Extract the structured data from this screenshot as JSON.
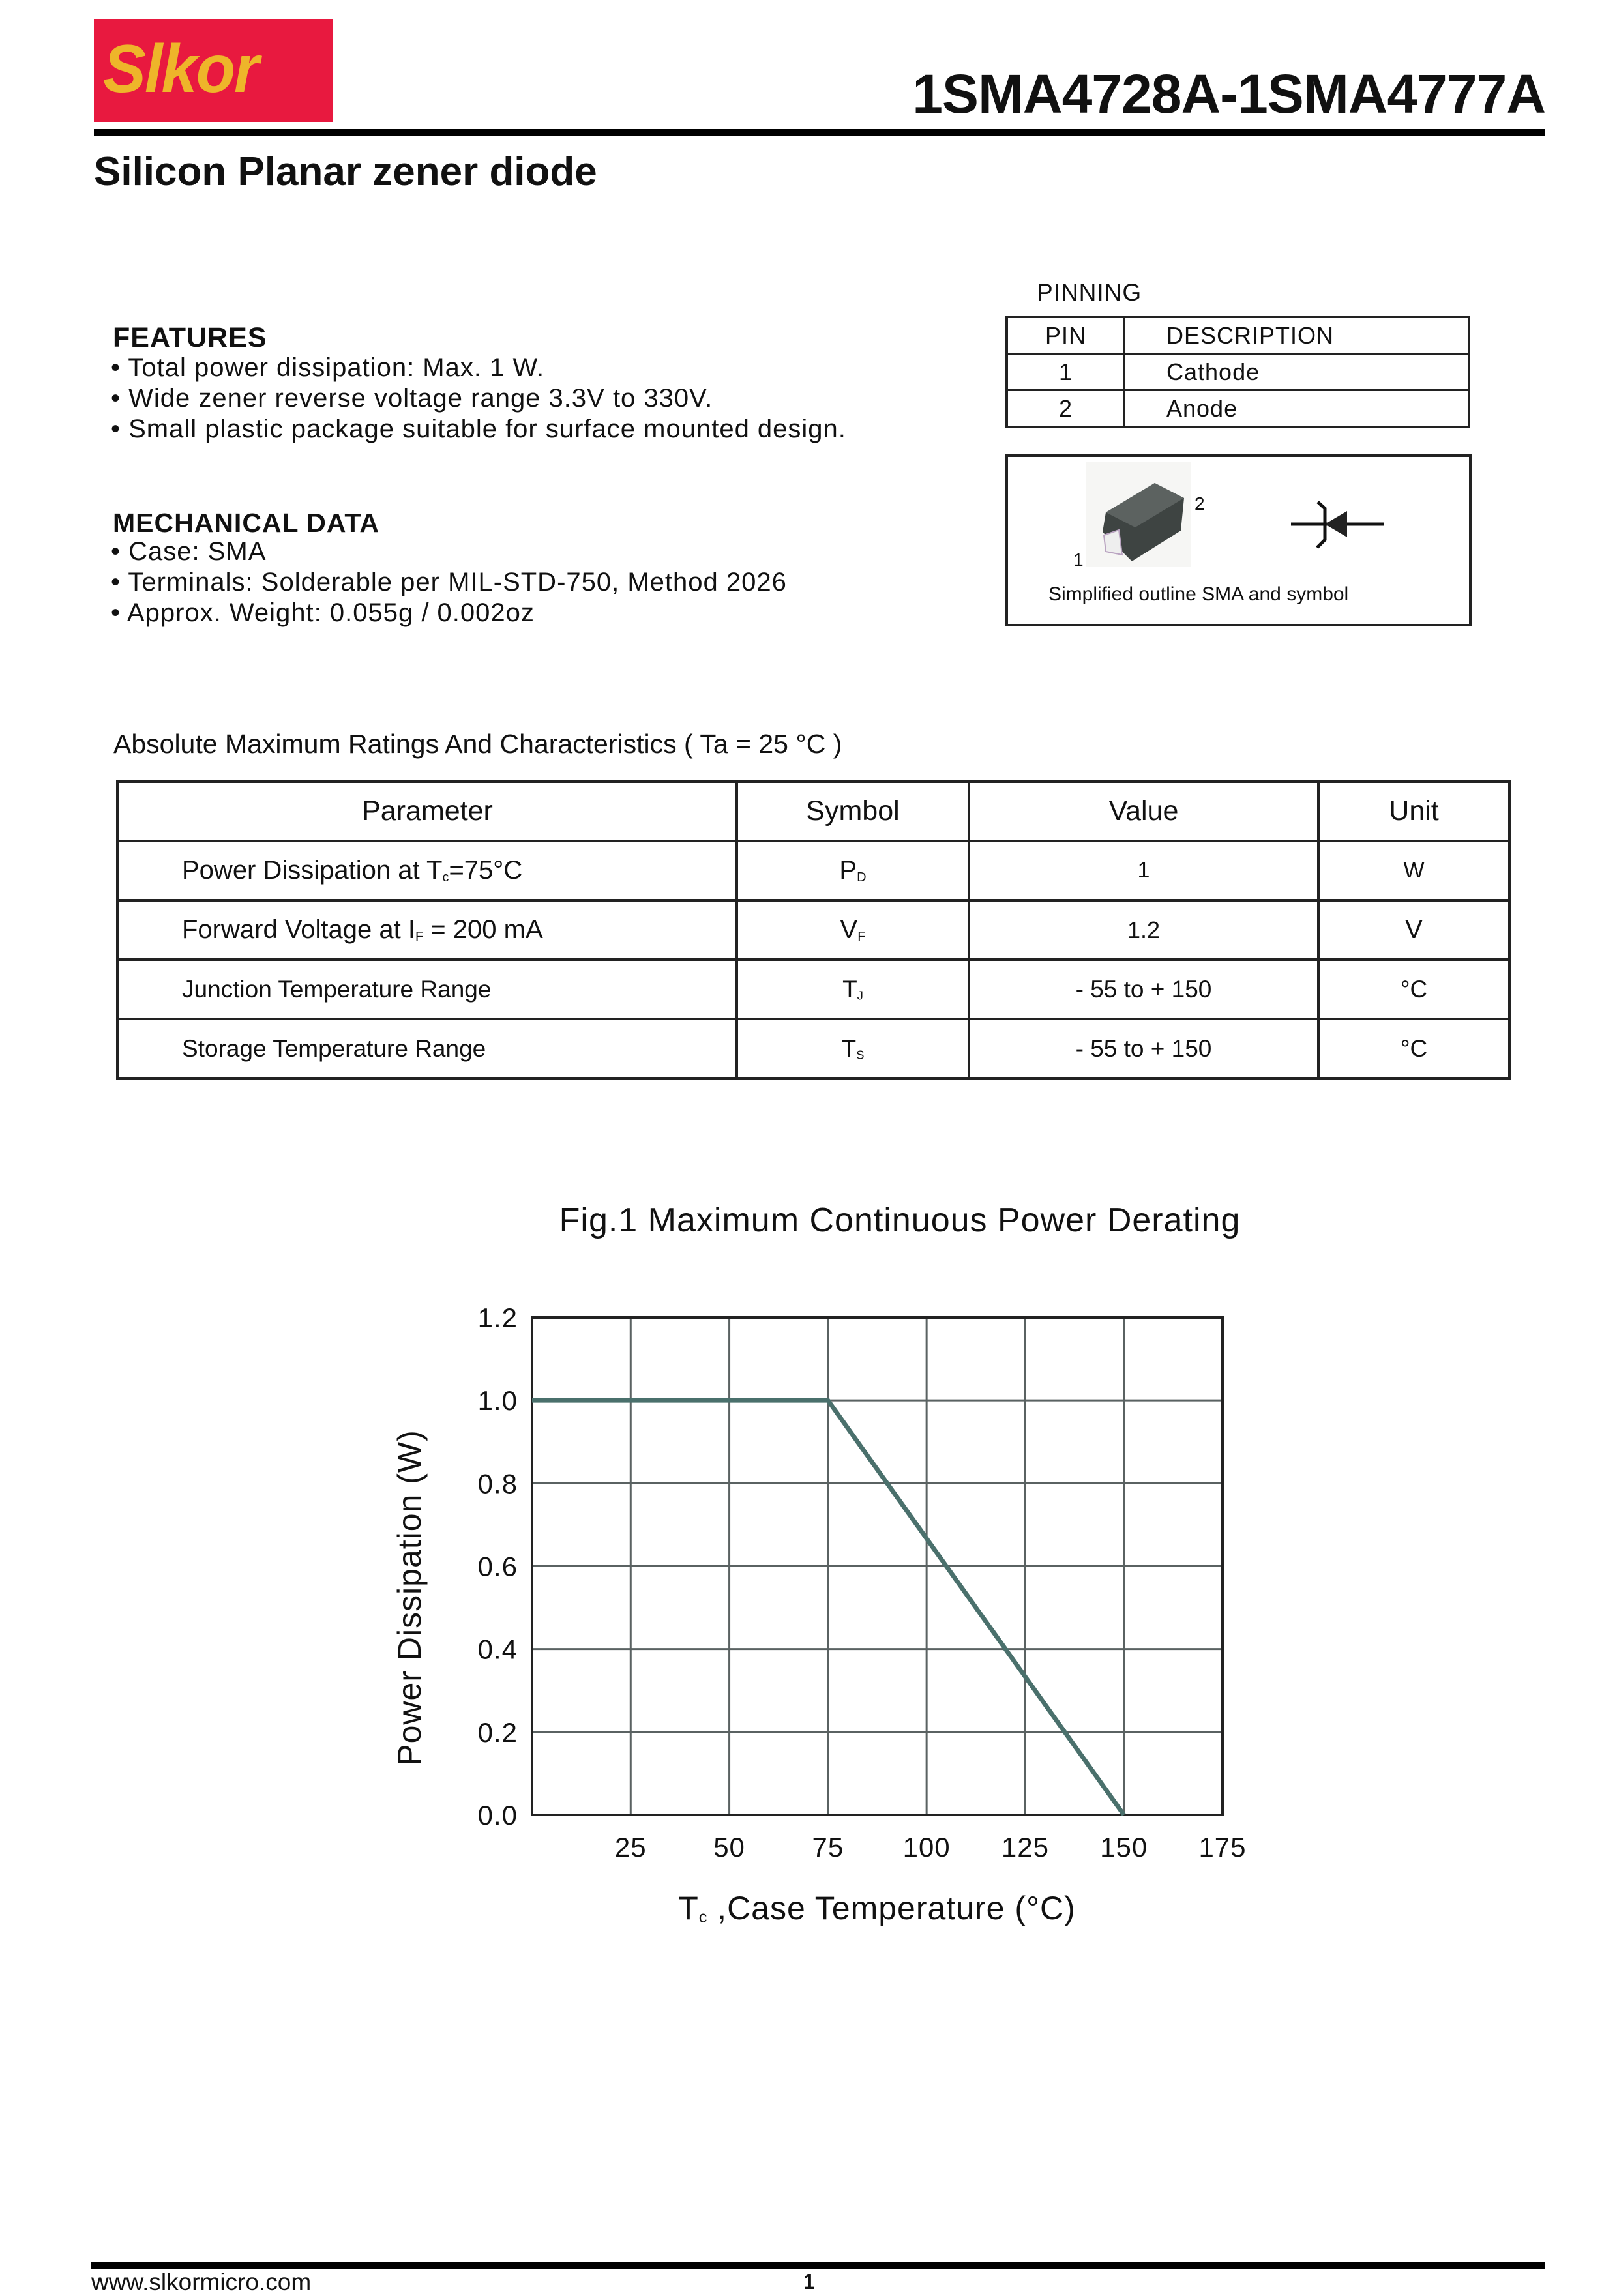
{
  "header": {
    "logo_text": "Slkor",
    "brand_color": "#e8193f",
    "logo_text_color": "#eeb52a",
    "part_range": "1SMA4728A-1SMA4777A",
    "subtitle": "Silicon  Planar zener diode"
  },
  "features": {
    "title": "FEATURES",
    "items": [
      "• Total power dissipation: Max. 1 W.",
      "• Wide zener reverse voltage range 3.3V to 330V.",
      "• Small plastic package suitable for surface mounted design."
    ]
  },
  "mechanical": {
    "title": "MECHANICAL DATA",
    "items": [
      "• Case: SMA",
      "• Terminals: Solderable per MIL-STD-750, Method 2026",
      "• Approx. Weight: 0.055g / 0.002oz"
    ]
  },
  "pinning": {
    "title": "PINNING",
    "headers": [
      "PIN",
      "DESCRIPTION"
    ],
    "rows": [
      [
        "1",
        "Cathode"
      ],
      [
        "2",
        "Anode"
      ]
    ],
    "package_pin_labels": [
      "1",
      "2"
    ],
    "caption": "Simplified outline SMA and symbol"
  },
  "ratings": {
    "title": "Absolute Maximum Ratings And Characteristics   ( Ta = 25 °C )",
    "headers": [
      "Parameter",
      "Symbol",
      "Value",
      "Unit"
    ],
    "rows": [
      {
        "param": "Power Dissipation at T",
        "param_sub": "c",
        "param_tail": "=75°C",
        "sym": "P",
        "sym_sub": "D",
        "value": "1",
        "unit": "W"
      },
      {
        "param": "Forward Voltage at I",
        "param_sub": "F",
        "param_tail": " = 200 mA",
        "sym": "V",
        "sym_sub": "F",
        "value": "1.2",
        "unit": "V"
      },
      {
        "param": "Junction Temperature Range",
        "param_sub": "",
        "param_tail": "",
        "sym": "T",
        "sym_sub": "J",
        "value": "- 55 to + 150",
        "unit": "°C"
      },
      {
        "param": "Storage Temperature Range",
        "param_sub": "",
        "param_tail": "",
        "sym": "T",
        "sym_sub": "S",
        "value": "- 55 to + 150",
        "unit": "°C"
      }
    ]
  },
  "chart_data": {
    "type": "line",
    "title": "Fig.1  Maximum Continuous Power Derating",
    "xlabel": "T",
    "xlabel_sub": "c",
    "xlabel_tail": " ,Case Temperature (°C)",
    "ylabel": "Power Dissipation (W)",
    "xlim": [
      0,
      175
    ],
    "ylim": [
      0,
      1.2
    ],
    "xticks": [
      25,
      50,
      75,
      100,
      125,
      150,
      175
    ],
    "yticks": [
      "0.0",
      "0.2",
      "0.4",
      "0.6",
      "0.8",
      "1.0",
      "1.2"
    ],
    "grid": true,
    "line_color": "#4a706c",
    "series": [
      {
        "x": [
          0,
          75,
          150
        ],
        "y": [
          1.0,
          1.0,
          0.0
        ]
      }
    ]
  },
  "footer": {
    "url": "www.slkormicro.com",
    "page": "1"
  }
}
